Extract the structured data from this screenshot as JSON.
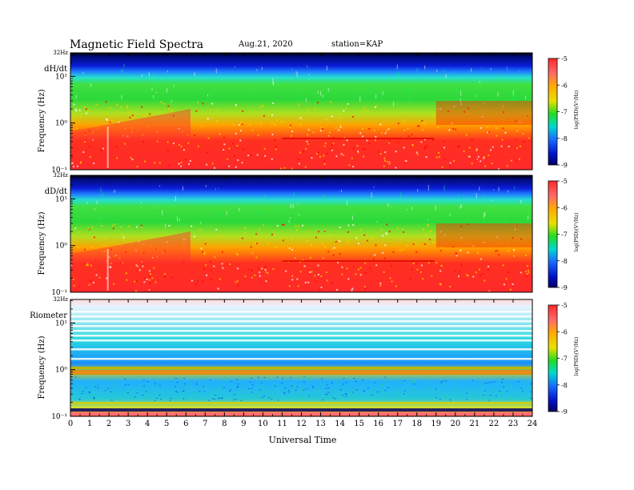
{
  "header": {
    "title": "Magnetic  Field  Spectra",
    "date": "Aug.21, 2020",
    "station": "station=KAP"
  },
  "colorbar_ticks": [
    "-5",
    "-6",
    "-7",
    "-8",
    "-9"
  ],
  "colorbar_label": "log(PSD)(V²/Hz)",
  "chart_data": [
    {
      "type": "heatmap",
      "panel_label": "dH/dt",
      "top_label": "32Hz",
      "ylabel": "Frequency (Hz)",
      "y_ticks": [
        "10¹",
        "10⁰",
        "10⁻¹"
      ],
      "yscale": "log",
      "ylim": [
        0.1,
        32
      ],
      "xlim": [
        0,
        24
      ],
      "zlim": [
        -9,
        -5
      ],
      "colorbar_label": "log(PSD)(V²/Hz)",
      "colorbar_ticks": [
        -5,
        -6,
        -7,
        -8,
        -9
      ]
    },
    {
      "type": "heatmap",
      "panel_label": "dD/dt",
      "top_label": "32Hz",
      "ylabel": "Frequency (Hz)",
      "y_ticks": [
        "10¹",
        "10⁰",
        "10⁻¹"
      ],
      "yscale": "log",
      "ylim": [
        0.1,
        32
      ],
      "xlim": [
        0,
        24
      ],
      "zlim": [
        -9,
        -5
      ],
      "colorbar_label": "log(PSD)(V²/Hz)",
      "colorbar_ticks": [
        -5,
        -6,
        -7,
        -8,
        -9
      ]
    },
    {
      "type": "heatmap",
      "panel_label": "Riometer",
      "top_label": "32Hz",
      "ylabel": "Frequency (Hz)",
      "y_ticks": [
        "10¹",
        "10⁰",
        "10⁻¹"
      ],
      "yscale": "log",
      "ylim": [
        0.1,
        32
      ],
      "xlim": [
        0,
        24
      ],
      "zlim": [
        -9,
        -5
      ],
      "colorbar_label": "log(PSD)(V²/Hz)",
      "colorbar_ticks": [
        -5,
        -6,
        -7,
        -8,
        -9
      ]
    }
  ],
  "x_axis": {
    "ticks": [
      "0",
      "1",
      "2",
      "3",
      "4",
      "5",
      "6",
      "7",
      "8",
      "9",
      "10",
      "11",
      "12",
      "13",
      "14",
      "15",
      "16",
      "17",
      "18",
      "19",
      "20",
      "21",
      "22",
      "23",
      "24"
    ],
    "label": "Universal Time"
  }
}
